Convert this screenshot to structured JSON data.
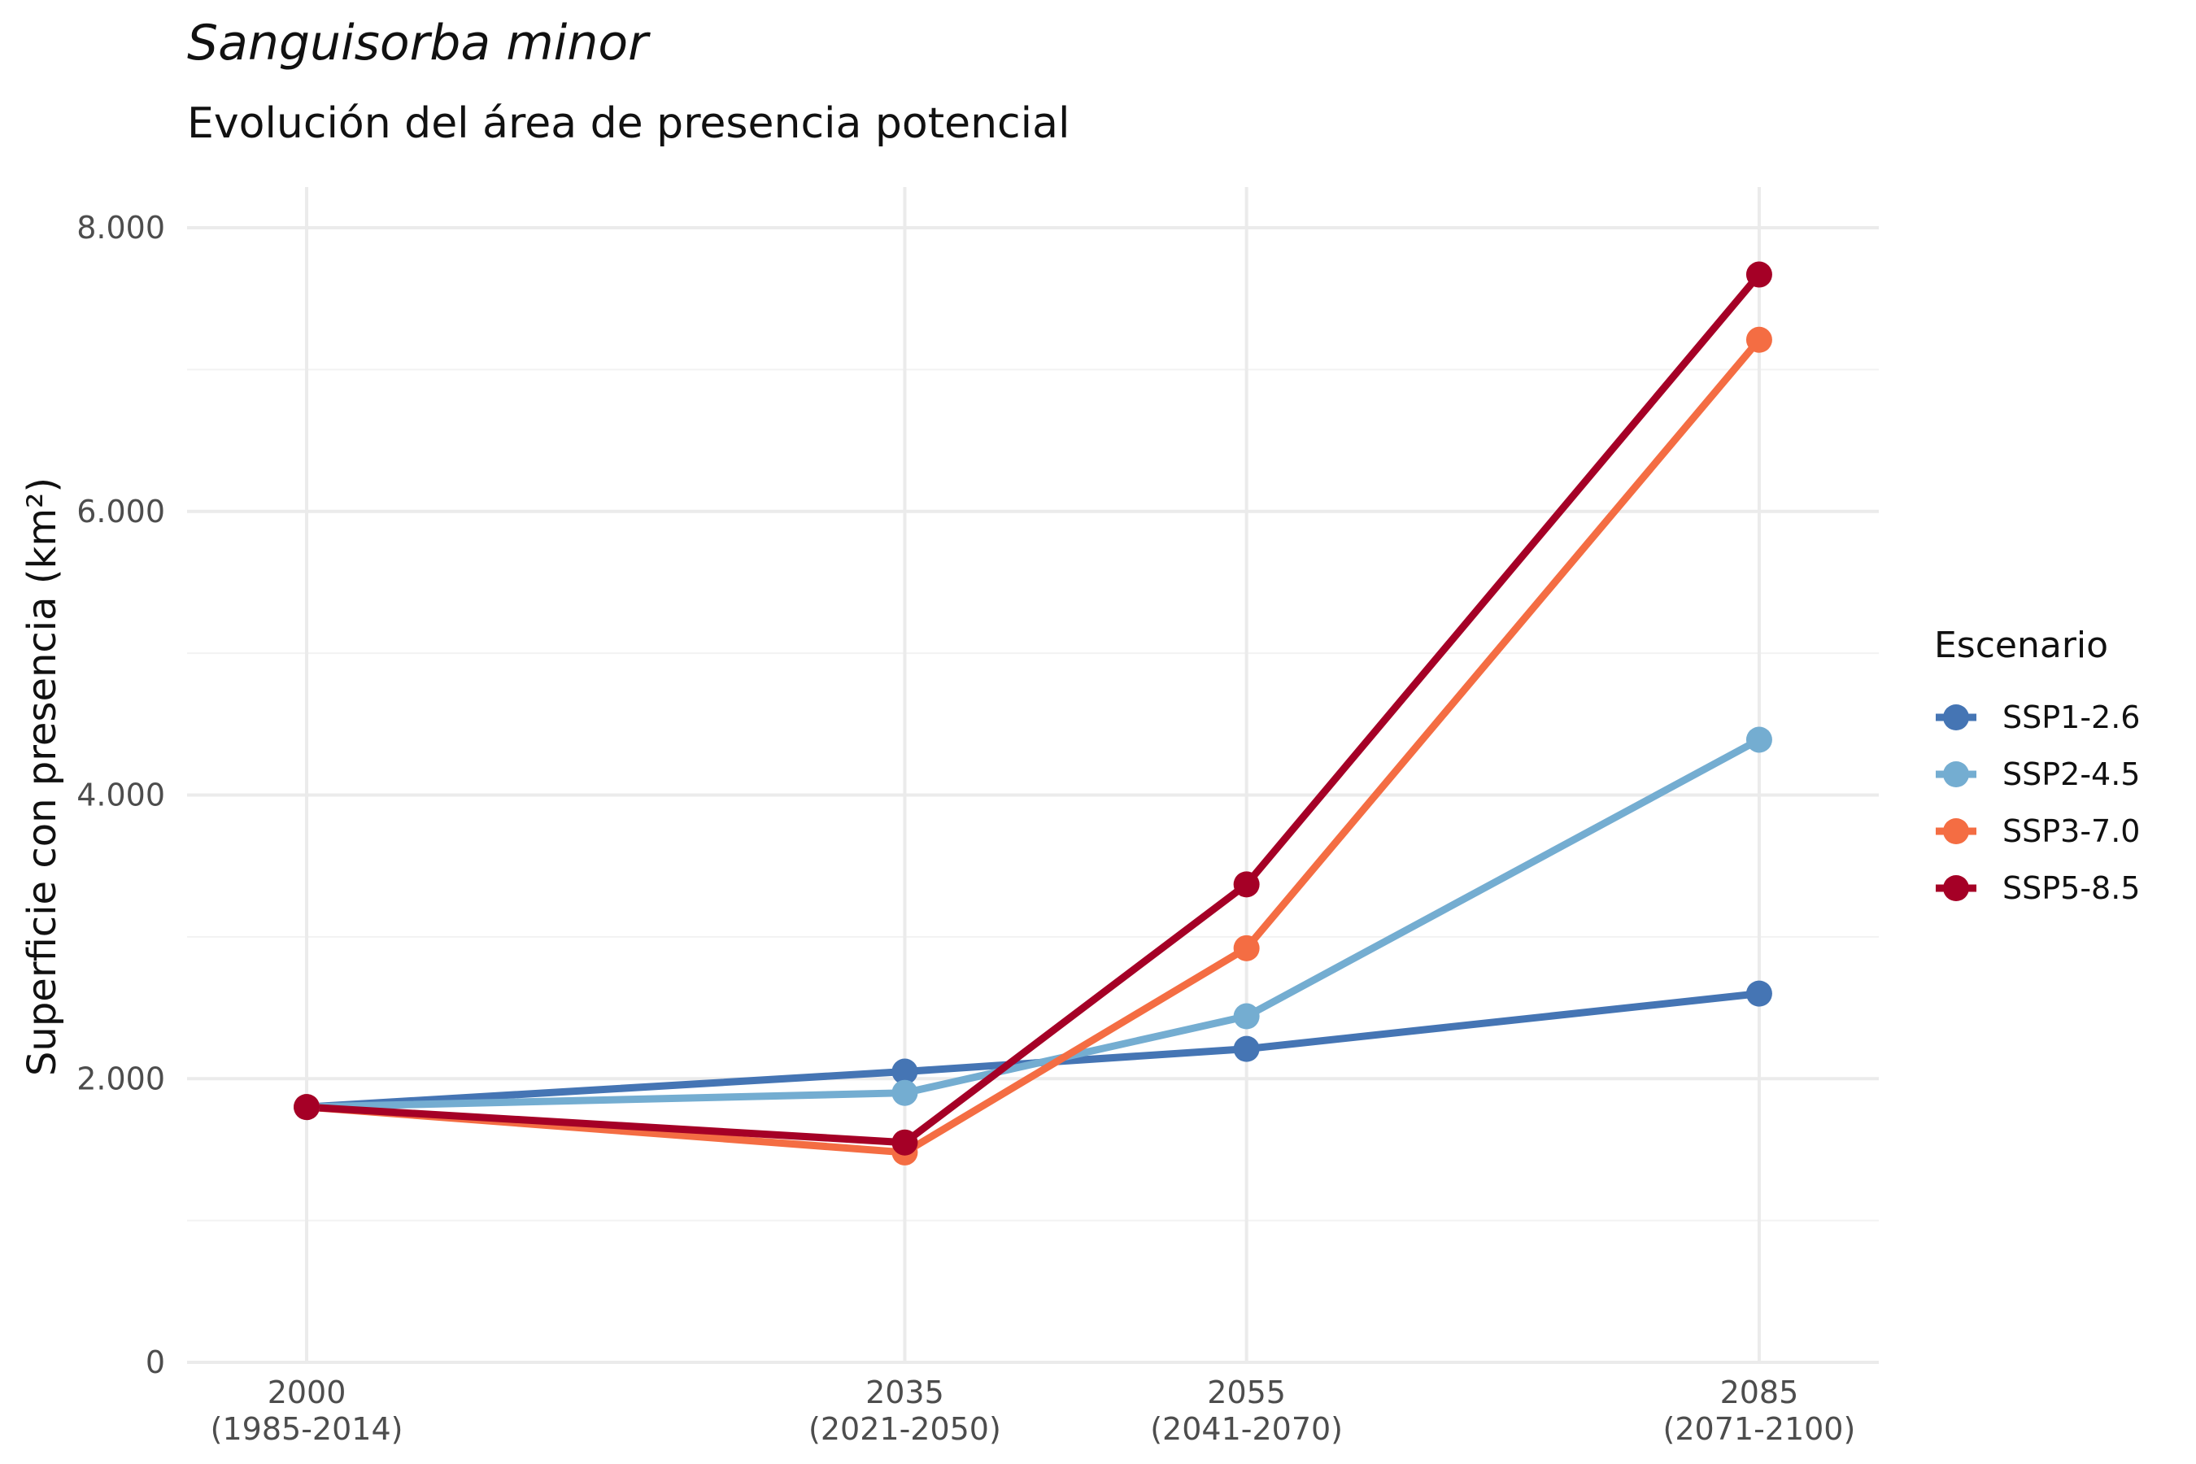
{
  "chart_data": {
    "type": "line",
    "title": "Sanguisorba minor",
    "subtitle": "Evolución del área de presencia potencial",
    "xlabel": "",
    "ylabel": "Superficie con presencia (km²)",
    "x": [
      2000,
      2035,
      2055,
      2085
    ],
    "x_tick_labels": [
      [
        "2000",
        "(1985-2014)"
      ],
      [
        "2035",
        "(2021-2050)"
      ],
      [
        "2055",
        "(2041-2070)"
      ],
      [
        "2085",
        "(2071-2100)"
      ]
    ],
    "ylim": [
      0,
      8000
    ],
    "y_ticks": [
      0,
      2000,
      4000,
      6000,
      8000
    ],
    "y_tick_labels": [
      "0",
      "2.000",
      "4.000",
      "6.000",
      "8.000"
    ],
    "grid": true,
    "legend": {
      "title": "Escenario",
      "position": "right"
    },
    "series": [
      {
        "name": "SSP1-2.6",
        "color": "#4575b4",
        "values": [
          1800,
          2050,
          2210,
          2600
        ]
      },
      {
        "name": "SSP2-4.5",
        "color": "#74add1",
        "values": [
          1800,
          1900,
          2440,
          4390
        ]
      },
      {
        "name": "SSP3-7.0",
        "color": "#f46d43",
        "values": [
          1800,
          1480,
          2920,
          7210
        ]
      },
      {
        "name": "SSP5-8.5",
        "color": "#a50026",
        "values": [
          1800,
          1550,
          3370,
          7670
        ]
      }
    ]
  }
}
